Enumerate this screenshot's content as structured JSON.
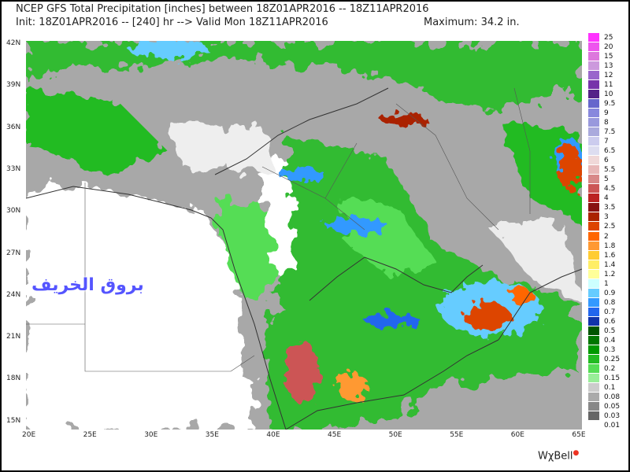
{
  "header": {
    "line1": "NCEP GFS Total Precipitation [inches] between 18Z01APR2016 -- 18Z11APR2016",
    "line2": "Init: 18Z01APR2016 -- [240] hr --> Valid Mon 18Z11APR2016",
    "maximum": "Maximum: 34.2 in."
  },
  "lat_labels": [
    "42N",
    "39N",
    "36N",
    "33N",
    "30N",
    "27N",
    "24N",
    "21N",
    "18N",
    "15N"
  ],
  "lon_labels": [
    "20E",
    "25E",
    "30E",
    "35E",
    "40E",
    "45E",
    "50E",
    "55E",
    "60E",
    "65E"
  ],
  "legend": {
    "levels": [
      "25",
      "20",
      "15",
      "13",
      "12",
      "11",
      "10",
      "9.5",
      "9",
      "8",
      "7.5",
      "7",
      "6.5",
      "6",
      "5.5",
      "5",
      "4.5",
      "4",
      "3.5",
      "3",
      "2.5",
      "2",
      "1.8",
      "1.6",
      "1.4",
      "1.2",
      "1",
      "0.9",
      "0.8",
      "0.7",
      "0.6",
      "0.5",
      "0.4",
      "0.3",
      "0.25",
      "0.2",
      "0.15",
      "0.1",
      "0.08",
      "0.05",
      "0.03",
      "0.01"
    ],
    "colors": [
      "#ff33ff",
      "#ee55ee",
      "#dd77dd",
      "#cc99dd",
      "#9966cc",
      "#7733aa",
      "#552288",
      "#6666cc",
      "#8888dd",
      "#9999dd",
      "#aaaadd",
      "#ccccee",
      "#ddddf0",
      "#f0d8d8",
      "#e8b8b8",
      "#d88888",
      "#cc5555",
      "#bb2222",
      "#881111",
      "#aa2200",
      "#dd4400",
      "#ff6600",
      "#ff9933",
      "#ffcc33",
      "#ffee66",
      "#ffff99",
      "#ccffff",
      "#66ccff",
      "#3399ff",
      "#2266ee",
      "#1133aa",
      "#005500",
      "#007700",
      "#009900",
      "#22bb22",
      "#55dd55",
      "#99ee99",
      "#cccccc",
      "#aaaaaa",
      "#888888",
      "#666666",
      "#ffffff"
    ]
  },
  "watermark": "بروق الخريف",
  "brand": "WχBell"
}
